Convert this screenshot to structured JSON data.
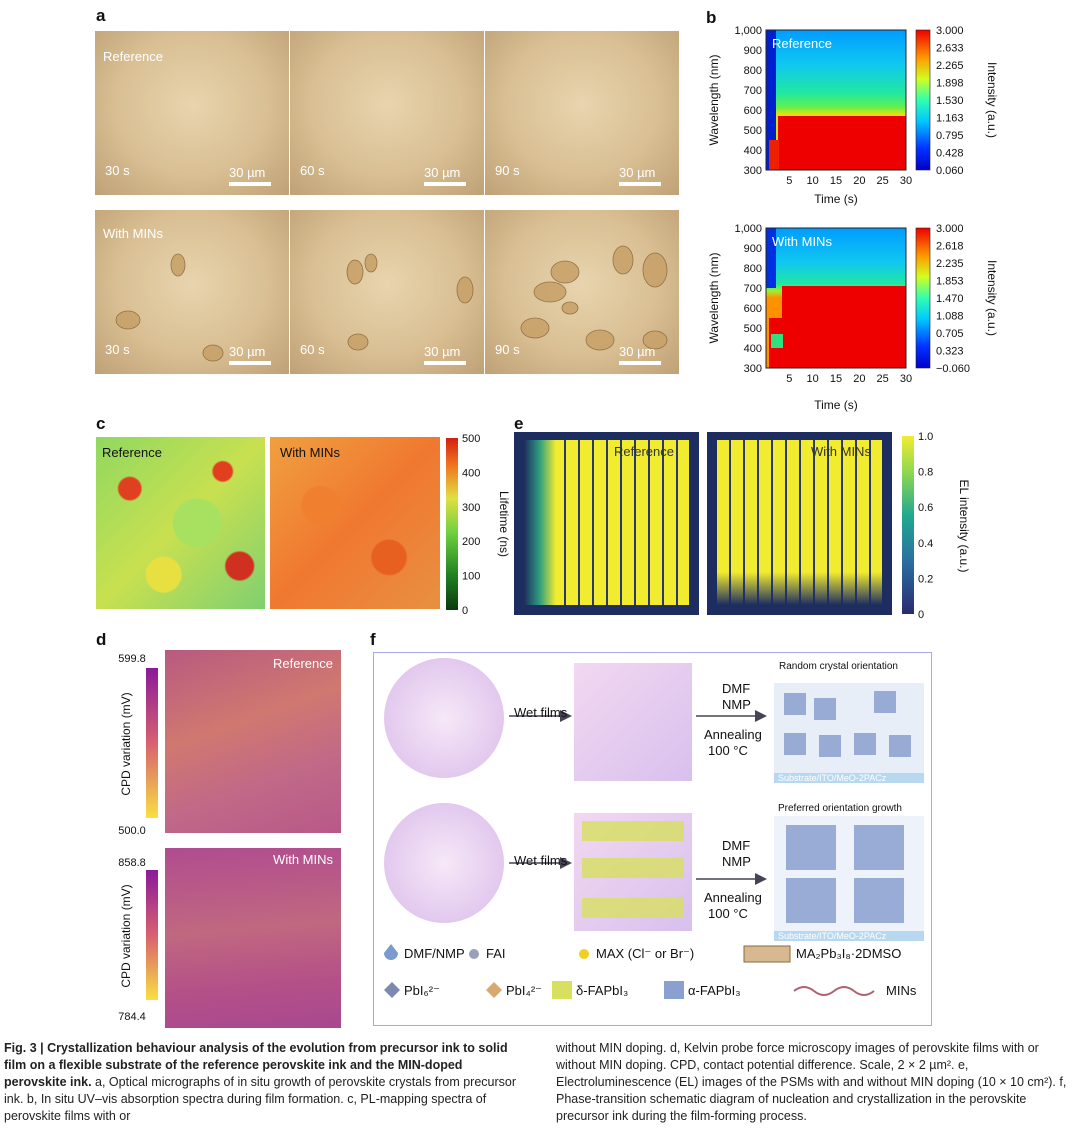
{
  "panels": {
    "a": "a",
    "b": "b",
    "c": "c",
    "d": "d",
    "e": "e",
    "f": "f"
  },
  "a": {
    "reference_label": "Reference",
    "mins_label": "With MINs",
    "times": [
      "30 s",
      "60 s",
      "90 s"
    ],
    "scale": "30 µm"
  },
  "b_top": {
    "label": "Reference",
    "ylabel": "Wavelength (nm)",
    "xlabel": "Time (s)",
    "yticks": [
      "1,000",
      "900",
      "800",
      "700",
      "600",
      "500",
      "400",
      "300"
    ],
    "xticks": [
      "5",
      "10",
      "15",
      "20",
      "25",
      "30"
    ],
    "cbar_ticks": [
      "3.000",
      "2.633",
      "2.265",
      "1.898",
      "1.530",
      "1.163",
      "0.795",
      "0.428",
      "0.060"
    ],
    "cbar_label": "Intensity (a.u.)"
  },
  "b_bottom": {
    "label": "With MINs",
    "ylabel": "Wavelength (nm)",
    "xlabel": "Time (s)",
    "yticks": [
      "1,000",
      "900",
      "800",
      "700",
      "600",
      "500",
      "400",
      "300"
    ],
    "xticks": [
      "5",
      "10",
      "15",
      "20",
      "25",
      "30"
    ],
    "cbar_ticks": [
      "3.000",
      "2.618",
      "2.235",
      "1.853",
      "1.470",
      "1.088",
      "0.705",
      "0.323",
      "−0.060"
    ],
    "cbar_label": "Intensity (a.u.)"
  },
  "c": {
    "reference_label": "Reference",
    "mins_label": "With MINs",
    "cbar_ticks": [
      "500",
      "400",
      "300",
      "200",
      "100",
      "0"
    ],
    "cbar_label": "Lifetime (ns)"
  },
  "e": {
    "reference_label": "Reference",
    "mins_label": "With MINs",
    "cbar_ticks": [
      "1.0",
      "0.8",
      "0.6",
      "0.4",
      "0.2",
      "0"
    ],
    "cbar_label": "EL intensity (a.u.)"
  },
  "d": {
    "reference_label": "Reference",
    "mins_label": "With MINs",
    "ref_max": "599.8",
    "ref_min": "500.0",
    "mins_max": "858.8",
    "mins_min": "784.4",
    "cbar_label": "CPD variation (mV)"
  },
  "f": {
    "wet_films": "Wet films",
    "dmf": "DMF",
    "nmp": "NMP",
    "annealing": "Annealing",
    "temp": "100 °C",
    "random": "Random crystal orientation",
    "preferred": "Preferred orientation growth",
    "substrate": "Substrate/ITO/MeO-2PACz",
    "legend": {
      "dmf_nmp": "DMF/NMP",
      "fai": "FAI",
      "max": "MAX (Cl⁻ or Br⁻)",
      "ma2pb3i8": "MA₂Pb₃I₈·2DMSO",
      "pbi6": "PbI₆²⁻",
      "pbi4": "PbI₄²⁻",
      "delta": "δ-FAPbI₃",
      "alpha": "α-FAPbI₃",
      "mins": "MINs"
    }
  },
  "caption": {
    "left_bold": "Fig. 3 | Crystallization behaviour analysis of the evolution from precursor ink to solid film on a flexible substrate of the reference perovskite ink and the MIN-doped perovskite ink.",
    "left_rest": " a, Optical micrographs of in situ growth of perovskite crystals from precursor ink. b, In situ UV–vis absorption spectra during film formation. c, PL-mapping spectra of perovskite films with or",
    "right": "without MIN doping. d, Kelvin probe force microscopy images of perovskite films with or without MIN doping. CPD, contact potential difference. Scale, 2 × 2 µm². e, Electroluminescence (EL) images of the PSMs with and without MIN doping (10 × 10 cm²). f, Phase-transition schematic diagram of nucleation and crystallization in the perovskite precursor ink during the film-forming process."
  }
}
